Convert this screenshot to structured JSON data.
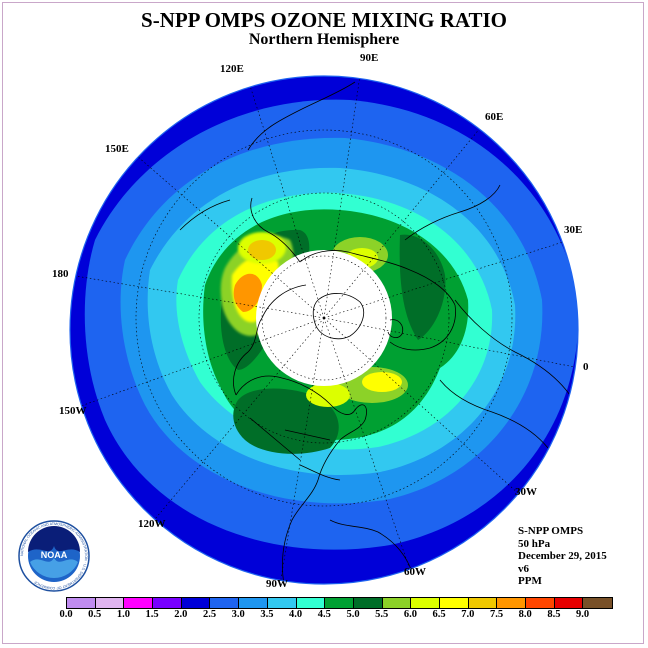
{
  "title": "S-NPP OMPS OZONE MIXING RATIO",
  "subtitle": "Northern Hemisphere",
  "longitude_labels": {
    "e90": "90E",
    "e60": "60E",
    "e30": "30E",
    "zero": "0",
    "w30": "30W",
    "w60": "60W",
    "w90": "90W",
    "w120": "120W",
    "w150": "150W",
    "d180": "180",
    "e150": "150E",
    "e120": "120E"
  },
  "info": {
    "instrument": "S-NPP OMPS",
    "level": "50 hPa",
    "date": "December 29, 2015",
    "version": "v6",
    "units": "PPM"
  },
  "colorbar": {
    "ticks": [
      "0.0",
      "0.5",
      "1.0",
      "1.5",
      "2.0",
      "2.5",
      "3.0",
      "3.5",
      "4.0",
      "4.5",
      "5.0",
      "5.5",
      "6.0",
      "6.5",
      "7.0",
      "7.5",
      "8.0",
      "8.5",
      "9.0"
    ],
    "colors": [
      "#c08cf0",
      "#e0b4f0",
      "#ff00ff",
      "#7800ff",
      "#0000d8",
      "#1e64f0",
      "#1e96f0",
      "#32c8f0",
      "#32ffd2",
      "#00a032",
      "#006e28",
      "#8cd228",
      "#dcff00",
      "#ffff00",
      "#f0c800",
      "#ff9600",
      "#ff4600",
      "#e60000",
      "#785028"
    ]
  },
  "logo": {
    "text": "NOAA",
    "ring_text": "NATIONAL OCEANIC AND ATMOSPHERIC ADMINISTRATION · U.S. DEPARTMENT OF COMMERCE"
  }
}
